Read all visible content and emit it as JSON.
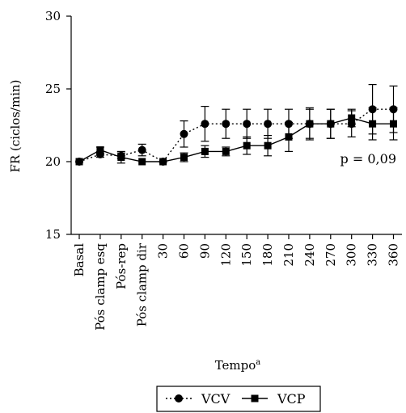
{
  "chart_data": {
    "type": "line",
    "title": "",
    "ylabel": "FR (ciclos/min)",
    "xlabel": "Tempo",
    "xlabel_superscript": "a",
    "ylim": [
      15,
      30
    ],
    "yticks": [
      "15",
      "20",
      "25",
      "30"
    ],
    "categories": [
      "Basal",
      "Pós clamp esq",
      "Pós-rep",
      "Pós clamp dir",
      "30",
      "60",
      "90",
      "120",
      "150",
      "180",
      "210",
      "240",
      "270",
      "300",
      "330",
      "360"
    ],
    "grid": false,
    "annotation": "p = 0,09",
    "legend_position": "bottom",
    "series": [
      {
        "name": "VCV",
        "marker": "circle",
        "line_style": "dotted",
        "values": [
          20.0,
          20.5,
          20.4,
          20.8,
          20.0,
          21.9,
          22.6,
          22.6,
          22.6,
          22.6,
          22.6,
          22.6,
          22.6,
          22.6,
          23.6,
          23.6
        ],
        "error": [
          0,
          0.2,
          0.2,
          0.4,
          0,
          0.9,
          1.2,
          1.0,
          1.0,
          1.0,
          1.0,
          1.0,
          1.0,
          0.9,
          1.7,
          1.6
        ]
      },
      {
        "name": "VCP",
        "marker": "square",
        "line_style": "solid",
        "values": [
          20.0,
          20.8,
          20.3,
          20.0,
          20.0,
          20.3,
          20.7,
          20.7,
          21.1,
          21.1,
          21.7,
          22.6,
          22.6,
          23.0,
          22.6,
          22.6
        ],
        "error": [
          0,
          0.2,
          0.4,
          0,
          0,
          0.3,
          0.4,
          0.3,
          0.6,
          0.7,
          1.0,
          1.1,
          1.0,
          0.6,
          1.1,
          1.1
        ]
      }
    ]
  }
}
